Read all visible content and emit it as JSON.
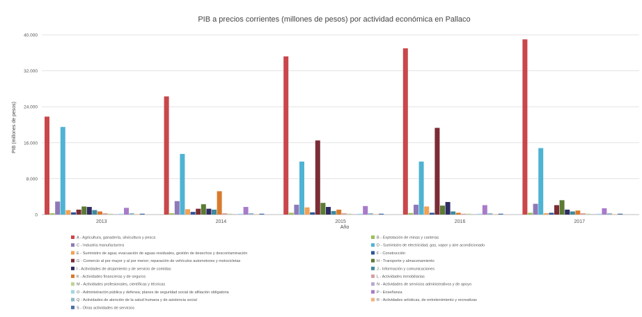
{
  "chart_data": {
    "type": "bar",
    "title": "PIB a precios corrientes (millones de pesos) por actividad económica en Pallaco",
    "xlabel": "Año",
    "ylabel": "PIB (millones de pesos)",
    "ylim": [
      0,
      40000
    ],
    "yticks": [
      0,
      8000,
      16000,
      24000,
      32000,
      40000
    ],
    "ytick_labels": [
      "0",
      "8.000",
      "16.000",
      "24.000",
      "32.000",
      "40.000"
    ],
    "grid": true,
    "legend_position": "bottom",
    "categories": [
      "2013",
      "2014",
      "2015",
      "2016",
      "2017"
    ],
    "series": [
      {
        "name": "A - Agricultura, ganadería, silvicultura y pesca",
        "color": "#c9474b",
        "values": [
          21800,
          26300,
          35200,
          37000,
          39000
        ]
      },
      {
        "name": "B - Explotación de minas y canteras",
        "color": "#9bbf5a",
        "values": [
          300,
          300,
          400,
          350,
          400
        ]
      },
      {
        "name": "C - Industria manufacturera",
        "color": "#8e79b8",
        "values": [
          2900,
          3000,
          2200,
          2200,
          2400
        ]
      },
      {
        "name": "D - Suministro de electricidad, gas, vapor y aire acondicionado",
        "color": "#4fb3d3",
        "values": [
          19500,
          13500,
          11800,
          11800,
          14800
        ]
      },
      {
        "name": "E - Suministro de agua; evacuación de aguas residuales, gestión de desechos y descontaminación",
        "color": "#f3a154",
        "values": [
          1000,
          1200,
          1600,
          1800,
          300
        ]
      },
      {
        "name": "F - Construcción",
        "color": "#2f5597",
        "values": [
          500,
          600,
          500,
          400,
          400
        ]
      },
      {
        "name": "G - Comercio al por mayor y al por menor; reparación de vehículos automotores y motocicletas",
        "color": "#7b2c35",
        "values": [
          1100,
          1300,
          16500,
          19300,
          2100
        ]
      },
      {
        "name": "H - Transporte y almacenamiento",
        "color": "#5b7a34",
        "values": [
          1800,
          2300,
          2600,
          2000,
          3200
        ]
      },
      {
        "name": "I - Actividades de alojamiento y de servicio de comidas",
        "color": "#2e2c63",
        "values": [
          1700,
          1300,
          1700,
          2800,
          1100
        ]
      },
      {
        "name": "J - Información y comunicaciones",
        "color": "#3f8a9e",
        "values": [
          1000,
          1100,
          800,
          700,
          700
        ]
      },
      {
        "name": "K - Actividades financieras y de seguros",
        "color": "#d97a2b",
        "values": [
          700,
          5200,
          1100,
          400,
          900
        ]
      },
      {
        "name": "L - Actividades inmobiliarias",
        "color": "#d8a0a0",
        "values": [
          300,
          300,
          300,
          200,
          300
        ]
      },
      {
        "name": "M - Actividades profesionales, científicas y técnicas",
        "color": "#bdd39a",
        "values": [
          200,
          200,
          200,
          200,
          200
        ]
      },
      {
        "name": "N - Actividades de servicios administrativos y de apoyo",
        "color": "#b7a9d3",
        "values": [
          100,
          100,
          100,
          100,
          100
        ]
      },
      {
        "name": "O - Administración pública y defensa; planes de seguridad social de afiliación obligatoria",
        "color": "#9fd6e6",
        "values": [
          200,
          200,
          200,
          200,
          200
        ]
      },
      {
        "name": "P - Enseñanza",
        "color": "#a87bc9",
        "values": [
          1500,
          1700,
          1900,
          2100,
          1400
        ]
      },
      {
        "name": "Q - Actividades de atención de la salud humana y de asistencia social",
        "color": "#8fb6c9",
        "values": [
          300,
          300,
          300,
          300,
          300
        ]
      },
      {
        "name": "R - Actividades artísticas, de entretenimiento y recreativas",
        "color": "#f2b27c",
        "values": [
          100,
          100,
          100,
          100,
          100
        ]
      },
      {
        "name": "S - Otras actividades de servicios",
        "color": "#4a6fa5",
        "values": [
          200,
          200,
          200,
          200,
          200
        ]
      }
    ]
  }
}
